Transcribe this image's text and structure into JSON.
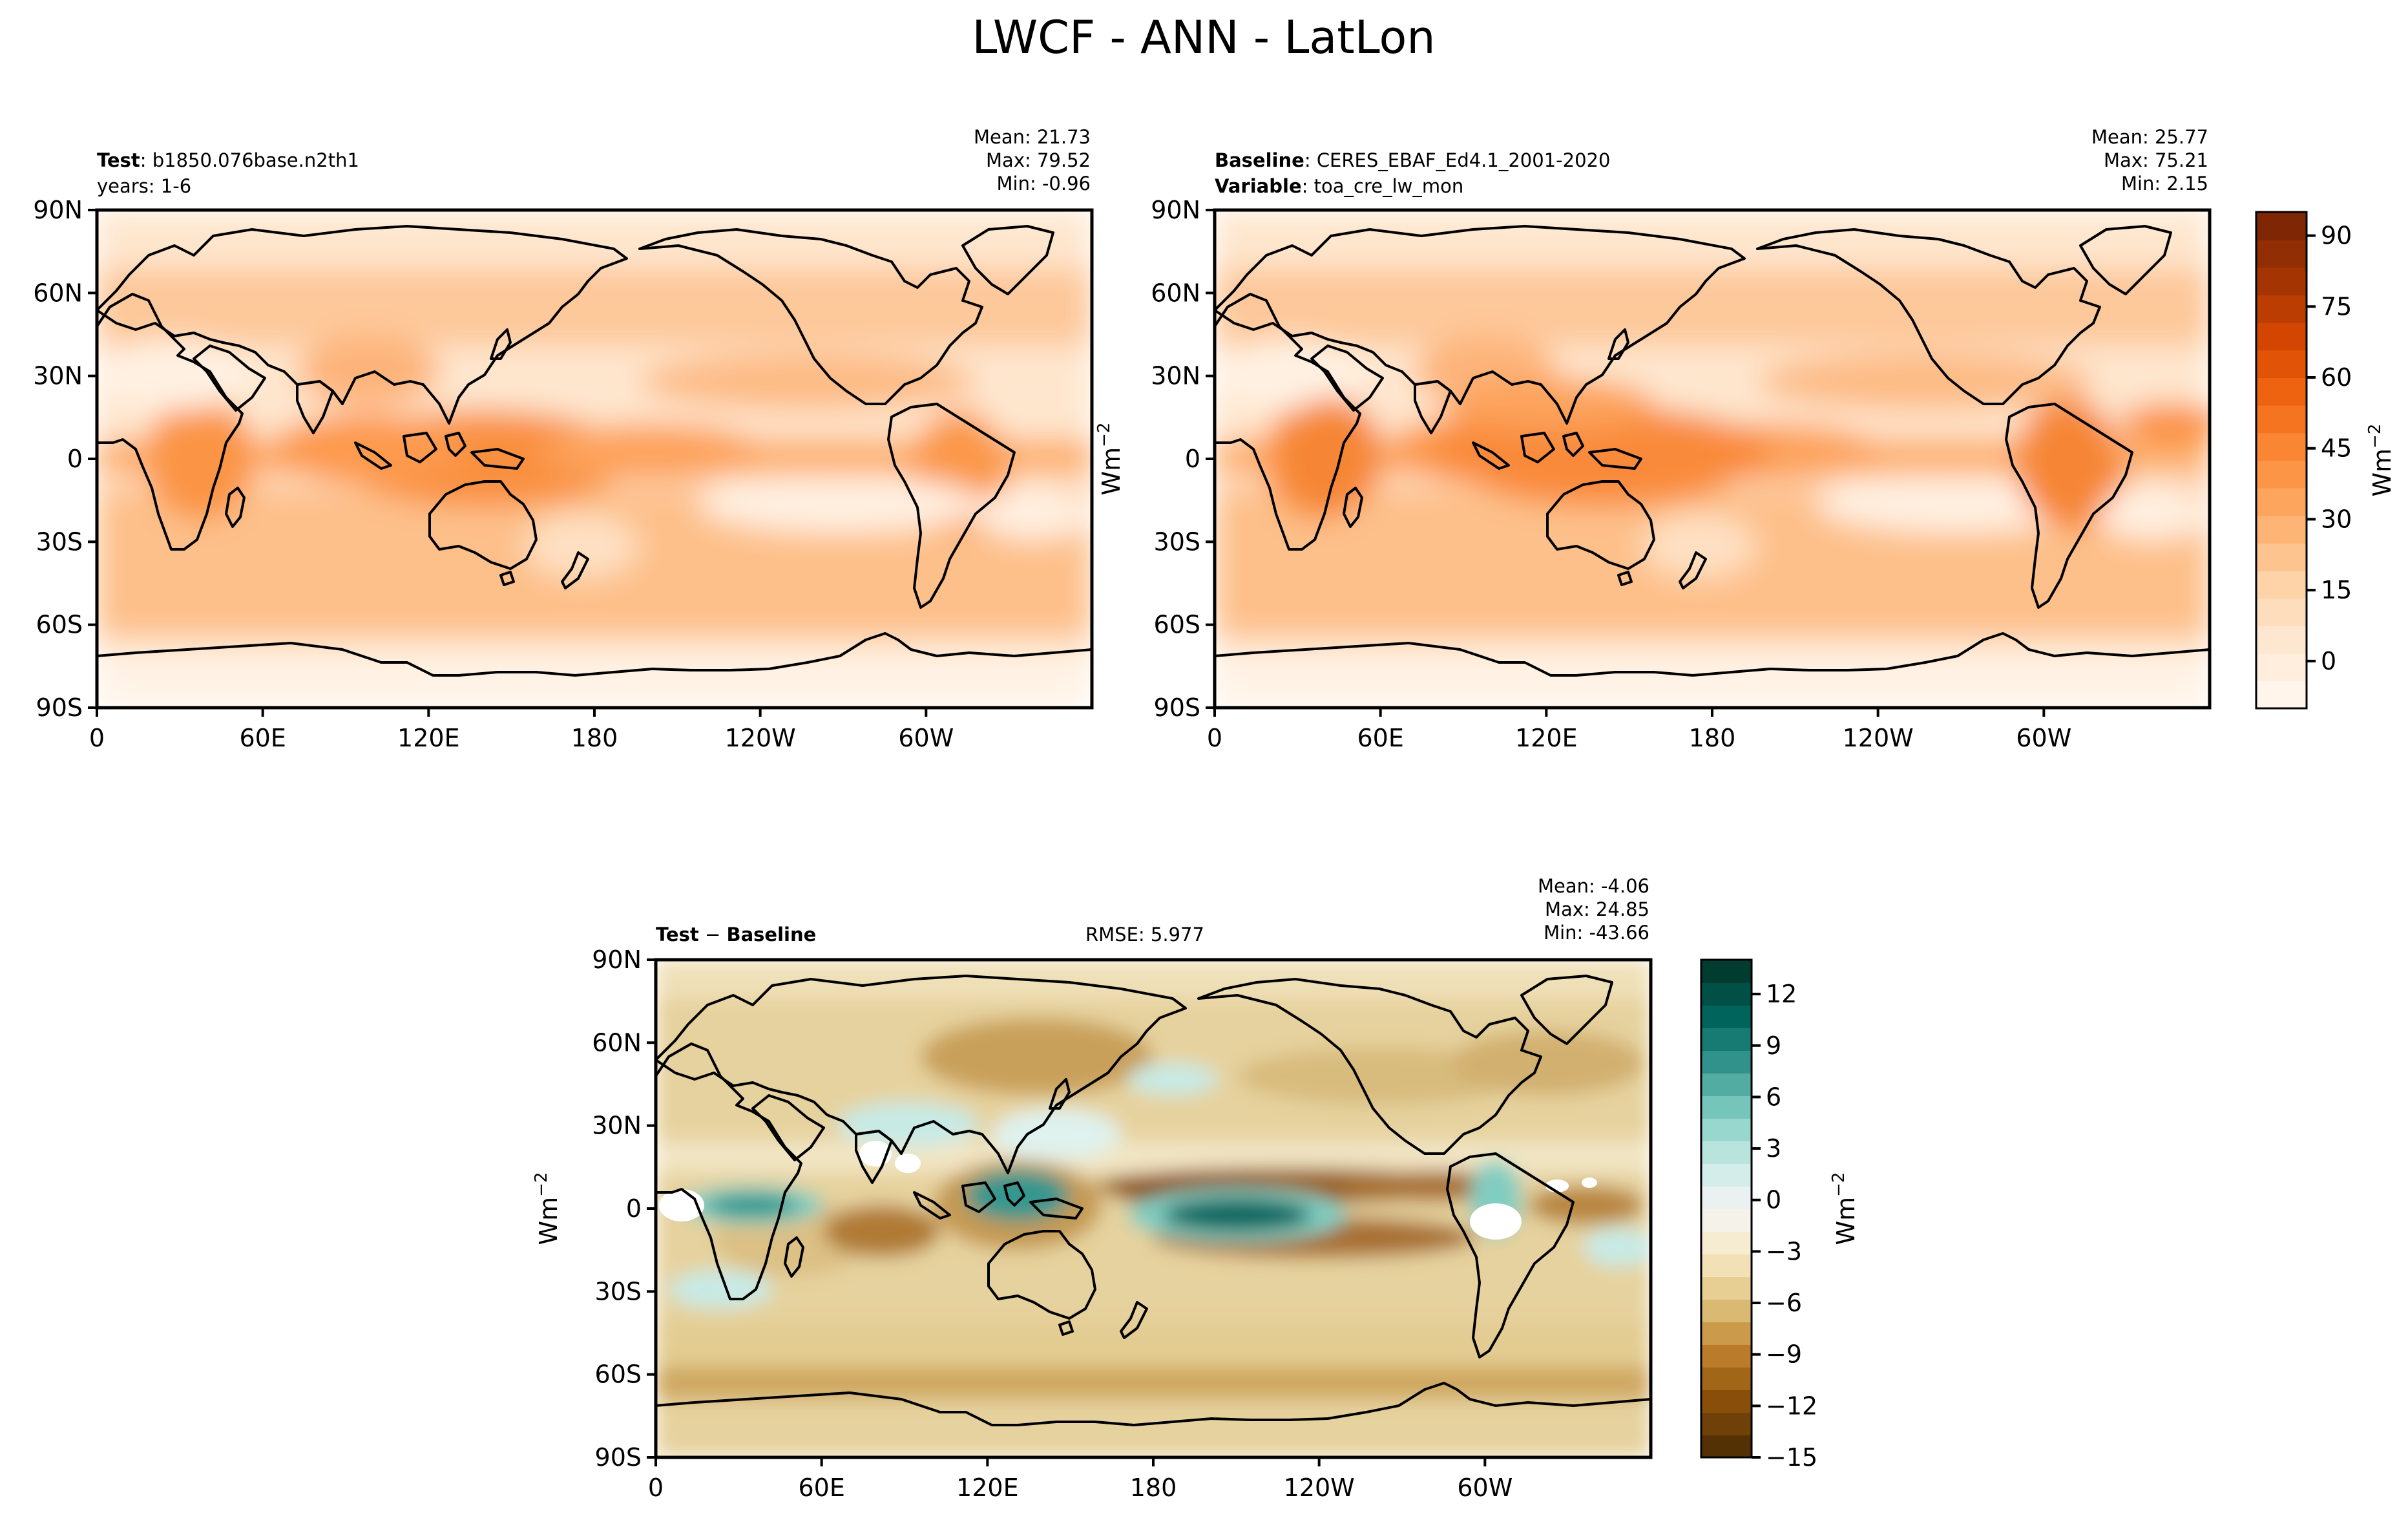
{
  "figure": {
    "title": "LWCF - ANN - LatLon"
  },
  "colors": {
    "sequential_ramp": [
      "#fff5eb",
      "#fee6ce",
      "#fdd0a2",
      "#fdae6b",
      "#fd8d3c",
      "#f16913",
      "#d94801",
      "#a63603",
      "#7f2704"
    ],
    "diverging_ramp": [
      "#543005",
      "#8c510a",
      "#bf812d",
      "#dfc27d",
      "#f6e8c3",
      "#f5f5f5",
      "#c7eae5",
      "#80cdc1",
      "#35978f",
      "#01665e",
      "#003c30"
    ]
  },
  "panels": {
    "test": {
      "label_bold": "Test",
      "label_text": "b1850.076base.n2th1",
      "line2": "years: 1-6",
      "stats": {
        "mean": "Mean: 21.73",
        "max": "Max: 79.52",
        "min": "Min: -0.96"
      }
    },
    "baseline": {
      "label_bold": "Baseline",
      "label_text": "CERES_EBAF_Ed4.1_2001-2020",
      "line2_bold": "Variable",
      "line2_text": "toa_cre_lw_mon",
      "stats": {
        "mean": "Mean: 25.77",
        "max": "Max: 75.21",
        "min": "Min:  2.15"
      }
    },
    "diff": {
      "label_bold_a": "Test",
      "label_sep": " − ",
      "label_bold_b": "Baseline",
      "rmse": "RMSE: 5.977",
      "stats": {
        "mean": "Mean: -4.06",
        "max": "Max: 24.85",
        "min": "Min: -43.66"
      }
    }
  },
  "axes": {
    "lat_ticks": [
      "90N",
      "60N",
      "30N",
      "0",
      "30S",
      "60S",
      "90S"
    ],
    "lon_ticks": [
      "0",
      "60E",
      "120E",
      "180",
      "120W",
      "60W"
    ]
  },
  "colorbars": {
    "sequential": {
      "label": "Wm",
      "label_sup": "−2",
      "ticks": [
        "0",
        "15",
        "30",
        "45",
        "60",
        "75",
        "90"
      ],
      "range": [
        -10,
        95
      ]
    },
    "diverging": {
      "label": "Wm",
      "label_sup": "−2",
      "ticks": [
        "−15",
        "−12",
        "−9",
        "−6",
        "−3",
        "0",
        "3",
        "6",
        "9",
        "12"
      ],
      "range": [
        -15,
        14
      ]
    },
    "diff_ylabel": {
      "label": "Wm",
      "label_sup": "−2"
    }
  }
}
